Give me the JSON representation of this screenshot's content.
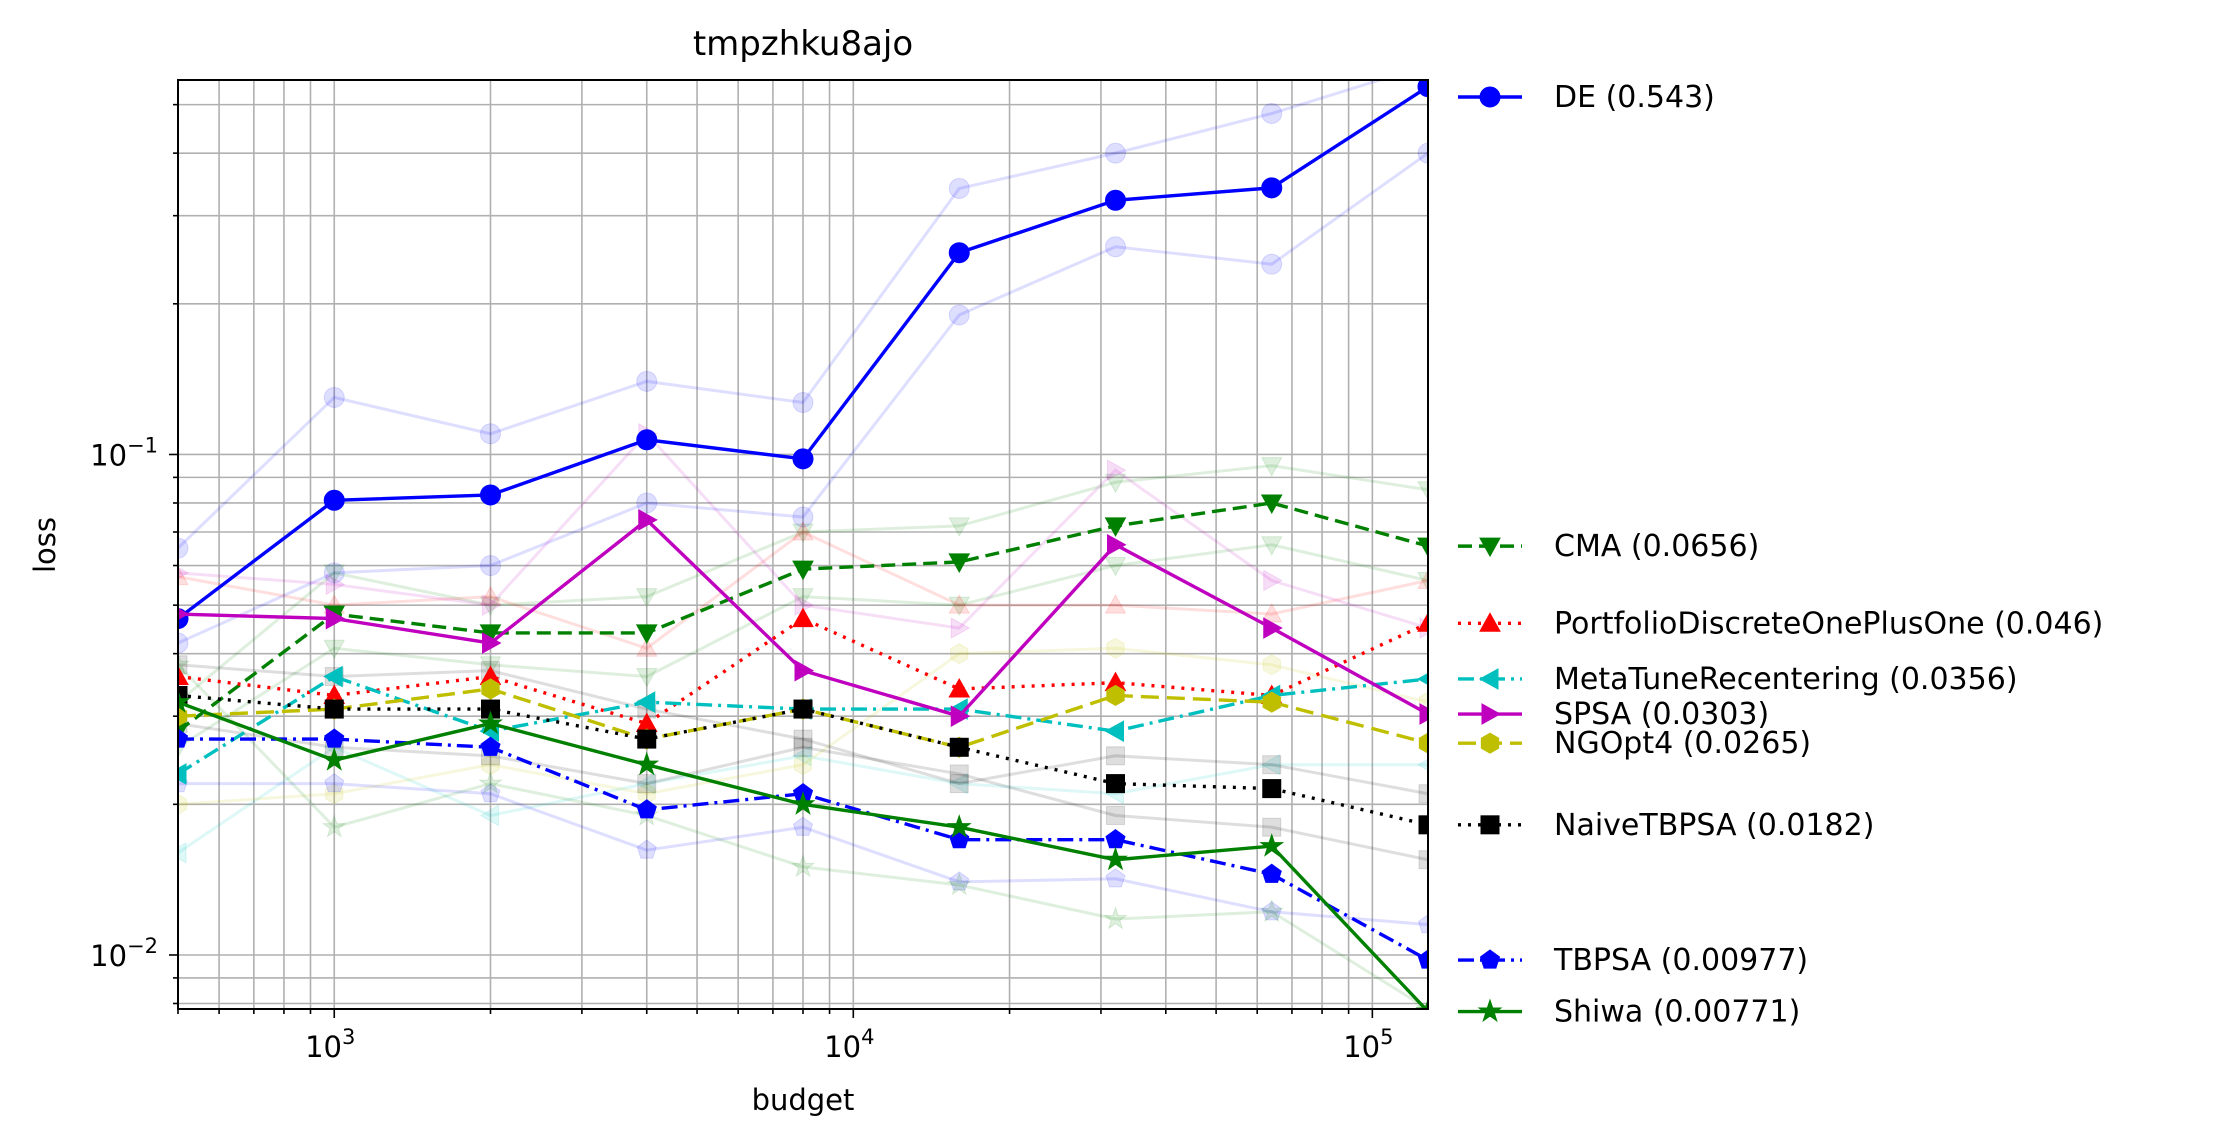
{
  "chart_data": {
    "type": "line",
    "title": "tmpzhku8ajo",
    "xlabel": "budget",
    "ylabel": "loss",
    "xscale": "log",
    "yscale": "log",
    "xlim": [
      500,
      128000
    ],
    "ylim": [
      0.0078,
      0.56
    ],
    "grid": true,
    "legend_position": "right-outside",
    "x_ticks": [
      {
        "value": 1000,
        "base": "10",
        "exp": "3"
      },
      {
        "value": 10000,
        "base": "10",
        "exp": "4"
      },
      {
        "value": 100000,
        "base": "10",
        "exp": "5"
      }
    ],
    "y_ticks": [
      {
        "value": 0.1,
        "base": "10",
        "exp": "−1"
      },
      {
        "value": 0.01,
        "base": "10",
        "exp": "−2"
      }
    ],
    "x": [
      500,
      1000,
      2000,
      4000,
      8000,
      16000,
      32000,
      64000,
      128000
    ],
    "series": [
      {
        "name": "DE (0.543)",
        "color": "#0000ff",
        "dash": "",
        "marker": "circle",
        "values": [
          0.047,
          0.081,
          0.083,
          0.107,
          0.098,
          0.253,
          0.322,
          0.341,
          0.543
        ]
      },
      {
        "name": "CMA (0.0656)",
        "color": "#008000",
        "dash": "14,7",
        "marker": "triangle-down",
        "values": [
          0.028,
          0.048,
          0.044,
          0.044,
          0.059,
          0.061,
          0.072,
          0.08,
          0.0656
        ]
      },
      {
        "name": "PortfolioDiscreteOnePlusOne (0.046)",
        "color": "#ff0000",
        "dash": "3,7",
        "marker": "triangle-up",
        "values": [
          0.036,
          0.033,
          0.036,
          0.029,
          0.047,
          0.034,
          0.035,
          0.033,
          0.046
        ]
      },
      {
        "name": "MetaTuneRecentering (0.0356)",
        "color": "#00bfbf",
        "dash": "16,6,3,6",
        "marker": "triangle-left",
        "values": [
          0.023,
          0.036,
          0.028,
          0.032,
          0.031,
          0.031,
          0.028,
          0.033,
          0.0356
        ]
      },
      {
        "name": "SPSA (0.0303)",
        "color": "#bf00bf",
        "dash": "",
        "marker": "triangle-right",
        "values": [
          0.048,
          0.047,
          0.042,
          0.074,
          0.037,
          0.03,
          0.066,
          0.045,
          0.0303
        ]
      },
      {
        "name": "NGOpt4 (0.0265)",
        "color": "#bfbf00",
        "dash": "18,8",
        "marker": "hexagon",
        "values": [
          0.03,
          0.031,
          0.034,
          0.027,
          0.031,
          0.026,
          0.033,
          0.032,
          0.0265
        ]
      },
      {
        "name": "NaiveTBPSA (0.0182)",
        "color": "#000000",
        "dash": "3,7",
        "marker": "square",
        "values": [
          0.033,
          0.031,
          0.031,
          0.027,
          0.031,
          0.026,
          0.022,
          0.0215,
          0.0182
        ]
      },
      {
        "name": "TBPSA (0.00977)",
        "color": "#0000ff",
        "dash": "16,6,3,6",
        "marker": "pentagon",
        "values": [
          0.027,
          0.027,
          0.026,
          0.0195,
          0.021,
          0.017,
          0.017,
          0.0145,
          0.00977
        ]
      },
      {
        "name": "Shiwa (0.00771)",
        "color": "#008000",
        "dash": "",
        "marker": "star",
        "values": [
          0.032,
          0.0245,
          0.029,
          0.024,
          0.02,
          0.018,
          0.0155,
          0.0165,
          0.00771
        ]
      }
    ],
    "faint_series": [
      {
        "color": "#0000ff",
        "marker": "circle",
        "values": [
          0.065,
          0.13,
          0.11,
          0.14,
          0.127,
          0.34,
          0.4,
          0.48,
          0.6
        ]
      },
      {
        "color": "#0000ff",
        "marker": "circle",
        "values": [
          0.042,
          0.058,
          0.06,
          0.08,
          0.075,
          0.19,
          0.26,
          0.24,
          0.4
        ]
      },
      {
        "color": "#008000",
        "marker": "triangle-down",
        "values": [
          0.032,
          0.058,
          0.05,
          0.052,
          0.07,
          0.072,
          0.088,
          0.095,
          0.085
        ]
      },
      {
        "color": "#008000",
        "marker": "triangle-down",
        "values": [
          0.026,
          0.041,
          0.038,
          0.036,
          0.052,
          0.05,
          0.06,
          0.066,
          0.056
        ]
      },
      {
        "color": "#ff0000",
        "marker": "triangle-up",
        "values": [
          0.057,
          0.05,
          0.052,
          0.041,
          0.07,
          0.05,
          0.05,
          0.048,
          0.056
        ]
      },
      {
        "color": "#00bfbf",
        "marker": "triangle-left",
        "values": [
          0.016,
          0.026,
          0.019,
          0.022,
          0.025,
          0.022,
          0.021,
          0.024,
          0.024
        ]
      },
      {
        "color": "#bf00bf",
        "marker": "triangle-right",
        "values": [
          0.058,
          0.055,
          0.05,
          0.11,
          0.05,
          0.045,
          0.093,
          0.056,
          0.045
        ]
      },
      {
        "color": "#bfbf00",
        "marker": "hexagon",
        "values": [
          0.02,
          0.021,
          0.024,
          0.021,
          0.024,
          0.04,
          0.041,
          0.038,
          0.032
        ]
      },
      {
        "color": "#000000",
        "marker": "square",
        "values": [
          0.038,
          0.036,
          0.037,
          0.031,
          0.027,
          0.022,
          0.025,
          0.024,
          0.021
        ]
      },
      {
        "color": "#000000",
        "marker": "square",
        "values": [
          0.029,
          0.026,
          0.025,
          0.022,
          0.026,
          0.023,
          0.019,
          0.018,
          0.0155
        ]
      },
      {
        "color": "#0000ff",
        "marker": "pentagon",
        "values": [
          0.022,
          0.022,
          0.021,
          0.0162,
          0.018,
          0.014,
          0.0142,
          0.0122,
          0.0115
        ]
      },
      {
        "color": "#008000",
        "marker": "star",
        "values": [
          0.038,
          0.018,
          0.022,
          0.019,
          0.015,
          0.0138,
          0.0118,
          0.0122,
          0.0078
        ]
      }
    ]
  }
}
